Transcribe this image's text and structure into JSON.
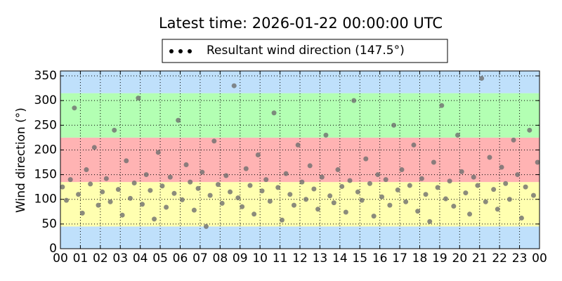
{
  "chart_data": {
    "type": "scatter",
    "title": "Latest time: 2026-01-22 00:00:00 UTC",
    "ylabel": "Wind direction (°)",
    "xlim": [
      0,
      24
    ],
    "ylim": [
      0,
      360
    ],
    "yticks": [
      0,
      50,
      100,
      150,
      200,
      250,
      300,
      350
    ],
    "xticks": [
      {
        "value": 0,
        "label": "00"
      },
      {
        "value": 1,
        "label": "01"
      },
      {
        "value": 2,
        "label": "02"
      },
      {
        "value": 3,
        "label": "03"
      },
      {
        "value": 4,
        "label": "04"
      },
      {
        "value": 5,
        "label": "05"
      },
      {
        "value": 6,
        "label": "06"
      },
      {
        "value": 7,
        "label": "07"
      },
      {
        "value": 8,
        "label": "08"
      },
      {
        "value": 9,
        "label": "09"
      },
      {
        "value": 10,
        "label": "10"
      },
      {
        "value": 11,
        "label": "11"
      },
      {
        "value": 12,
        "label": "12"
      },
      {
        "value": 13,
        "label": "13"
      },
      {
        "value": 14,
        "label": "14"
      },
      {
        "value": 15,
        "label": "15"
      },
      {
        "value": 16,
        "label": "16"
      },
      {
        "value": 17,
        "label": "17"
      },
      {
        "value": 18,
        "label": "18"
      },
      {
        "value": 19,
        "label": "19"
      },
      {
        "value": 20,
        "label": "20"
      },
      {
        "value": 21,
        "label": "21"
      },
      {
        "value": 22,
        "label": "22"
      },
      {
        "value": 23,
        "label": "23"
      },
      {
        "value": 24,
        "label": "00"
      }
    ],
    "grid": true,
    "legend_position": "top",
    "legend_marker_color": "#000000",
    "bands": [
      {
        "from": 0,
        "to": 45,
        "color": "#bfe0fb"
      },
      {
        "from": 45,
        "to": 135,
        "color": "#ffffb0"
      },
      {
        "from": 135,
        "to": 225,
        "color": "#ffb3b3"
      },
      {
        "from": 225,
        "to": 315,
        "color": "#b3ffb3"
      },
      {
        "from": 315,
        "to": 360,
        "color": "#bfe0fb"
      }
    ],
    "series": [
      {
        "name": "Resultant wind direction (147.5°)",
        "color": "#6e6e6e",
        "alpha": 0.8,
        "x": [
          0.1,
          0.3,
          0.5,
          0.7,
          0.9,
          1.1,
          1.3,
          1.5,
          1.7,
          1.9,
          2.1,
          2.3,
          2.5,
          2.7,
          2.9,
          3.1,
          3.3,
          3.5,
          3.7,
          3.9,
          4.1,
          4.3,
          4.5,
          4.7,
          4.9,
          5.1,
          5.3,
          5.5,
          5.7,
          5.9,
          6.1,
          6.3,
          6.5,
          6.7,
          6.9,
          7.1,
          7.3,
          7.5,
          7.7,
          7.9,
          8.1,
          8.3,
          8.5,
          8.7,
          8.9,
          9.1,
          9.3,
          9.5,
          9.7,
          9.9,
          10.1,
          10.3,
          10.5,
          10.7,
          10.9,
          11.1,
          11.3,
          11.5,
          11.7,
          11.9,
          12.1,
          12.3,
          12.5,
          12.7,
          12.9,
          13.1,
          13.3,
          13.5,
          13.7,
          13.9,
          14.1,
          14.3,
          14.5,
          14.7,
          14.9,
          15.1,
          15.3,
          15.5,
          15.7,
          15.9,
          16.1,
          16.3,
          16.5,
          16.7,
          16.9,
          17.1,
          17.3,
          17.5,
          17.7,
          17.9,
          18.1,
          18.3,
          18.5,
          18.7,
          18.9,
          19.1,
          19.3,
          19.5,
          19.7,
          19.9,
          20.1,
          20.3,
          20.5,
          20.7,
          20.9,
          21.1,
          21.3,
          21.5,
          21.7,
          21.9,
          22.1,
          22.3,
          22.5,
          22.7,
          22.9,
          23.1,
          23.3,
          23.5,
          23.7,
          23.9
        ],
        "values": [
          125,
          98,
          140,
          285,
          110,
          72,
          160,
          131,
          205,
          88,
          115,
          142,
          95,
          240,
          120,
          68,
          178,
          102,
          133,
          305,
          90,
          150,
          118,
          60,
          195,
          127,
          84,
          145,
          112,
          260,
          99,
          170,
          135,
          78,
          122,
          155,
          45,
          108,
          218,
          130,
          92,
          148,
          115,
          330,
          103,
          85,
          162,
          128,
          70,
          190,
          117,
          140,
          96,
          275,
          124,
          58,
          152,
          110,
          88,
          210,
          135,
          100,
          168,
          121,
          80,
          145,
          230,
          107,
          93,
          160,
          126,
          74,
          138,
          300,
          115,
          98,
          182,
          132,
          66,
          150,
          105,
          140,
          88,
          250,
          119,
          160,
          95,
          128,
          210,
          76,
          142,
          110,
          55,
          175,
          124,
          290,
          101,
          137,
          86,
          230,
          156,
          113,
          70,
          145,
          128,
          345,
          95,
          185,
          120,
          80,
          165,
          132,
          100,
          220,
          150,
          62,
          125,
          240,
          108,
          175
        ]
      }
    ]
  }
}
